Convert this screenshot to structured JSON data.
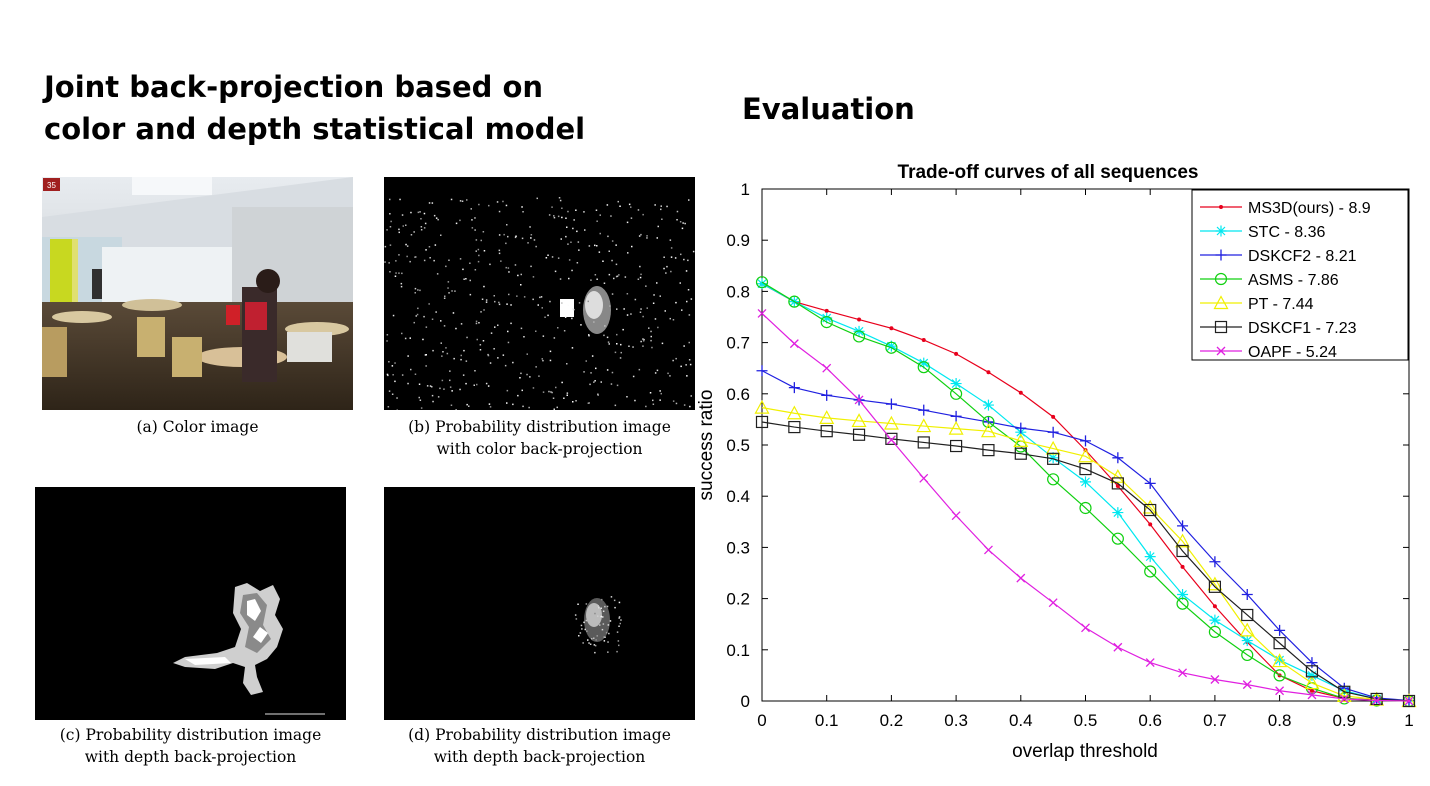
{
  "slide": {
    "left_title_line1": "Joint back-projection based on",
    "left_title_line2": "color and depth statistical model",
    "right_title": "Evaluation"
  },
  "figures": {
    "frame_number": "35",
    "captions": {
      "a": {
        "line1": "(a) Color image",
        "line2": ""
      },
      "b": {
        "line1": "(b) Probability distribution image",
        "line2": "with color back-projection"
      },
      "c": {
        "line1": "(c) Probability distribution image",
        "line2": "with depth back-projection"
      },
      "d": {
        "line1": "(d) Probability distribution image",
        "line2": "with depth back-projection"
      }
    }
  },
  "chart_data": {
    "type": "line",
    "title": "Trade-off curves of all sequences",
    "xlabel": "overlap threshold",
    "ylabel": "success ratio",
    "xlim": [
      0,
      1
    ],
    "ylim": [
      0,
      1
    ],
    "xticks": [
      "0",
      "0.1",
      "0.2",
      "0.3",
      "0.4",
      "0.5",
      "0.6",
      "0.7",
      "0.8",
      "0.9",
      "1"
    ],
    "yticks": [
      "0",
      "0.1",
      "0.2",
      "0.3",
      "0.4",
      "0.5",
      "0.6",
      "0.7",
      "0.8",
      "0.9",
      "1"
    ],
    "grid": false,
    "legend_position": "top-right",
    "x": [
      0,
      0.05,
      0.1,
      0.15,
      0.2,
      0.25,
      0.3,
      0.35,
      0.4,
      0.45,
      0.5,
      0.55,
      0.6,
      0.65,
      0.7,
      0.75,
      0.8,
      0.85,
      0.9,
      0.95,
      1
    ],
    "series": [
      {
        "name": "MS3D(ours) - 8.9",
        "color": "#e8001c",
        "marker": "dot",
        "values": [
          0.815,
          0.78,
          0.762,
          0.745,
          0.728,
          0.705,
          0.678,
          0.642,
          0.602,
          0.555,
          0.49,
          0.42,
          0.345,
          0.262,
          0.185,
          0.115,
          0.05,
          0.02,
          0.005,
          0.002,
          0.0
        ]
      },
      {
        "name": "STC - 8.36",
        "color": "#00e8f0",
        "marker": "star",
        "values": [
          0.815,
          0.78,
          0.748,
          0.722,
          0.693,
          0.66,
          0.62,
          0.578,
          0.525,
          0.475,
          0.428,
          0.368,
          0.282,
          0.208,
          0.158,
          0.118,
          0.08,
          0.05,
          0.02,
          0.004,
          0.0
        ]
      },
      {
        "name": "DSKCF2 - 8.21",
        "color": "#2020e0",
        "marker": "plus",
        "values": [
          0.645,
          0.612,
          0.597,
          0.588,
          0.58,
          0.568,
          0.556,
          0.545,
          0.533,
          0.525,
          0.508,
          0.475,
          0.425,
          0.342,
          0.272,
          0.208,
          0.138,
          0.075,
          0.025,
          0.006,
          0.001
        ]
      },
      {
        "name": "ASMS - 7.86",
        "color": "#10d010",
        "marker": "circle",
        "values": [
          0.818,
          0.78,
          0.74,
          0.712,
          0.69,
          0.652,
          0.6,
          0.545,
          0.497,
          0.433,
          0.377,
          0.317,
          0.253,
          0.19,
          0.135,
          0.09,
          0.05,
          0.025,
          0.005,
          0.001,
          0.0
        ]
      },
      {
        "name": "PT - 7.44",
        "color": "#f0f000",
        "marker": "triangle",
        "values": [
          0.573,
          0.562,
          0.553,
          0.547,
          0.542,
          0.537,
          0.532,
          0.527,
          0.508,
          0.493,
          0.478,
          0.438,
          0.378,
          0.312,
          0.228,
          0.138,
          0.078,
          0.035,
          0.01,
          0.003,
          0.0
        ]
      },
      {
        "name": "DSKCF1 - 7.23",
        "color": "#202020",
        "marker": "square",
        "values": [
          0.545,
          0.535,
          0.527,
          0.52,
          0.512,
          0.505,
          0.498,
          0.49,
          0.483,
          0.473,
          0.453,
          0.425,
          0.373,
          0.293,
          0.223,
          0.168,
          0.113,
          0.058,
          0.018,
          0.004,
          0.0
        ]
      },
      {
        "name": "OAPF - 5.24",
        "color": "#e020e0",
        "marker": "x",
        "values": [
          0.757,
          0.698,
          0.65,
          0.588,
          0.51,
          0.435,
          0.362,
          0.295,
          0.24,
          0.192,
          0.143,
          0.105,
          0.075,
          0.055,
          0.042,
          0.032,
          0.02,
          0.012,
          0.004,
          0.001,
          0.0
        ]
      }
    ]
  }
}
